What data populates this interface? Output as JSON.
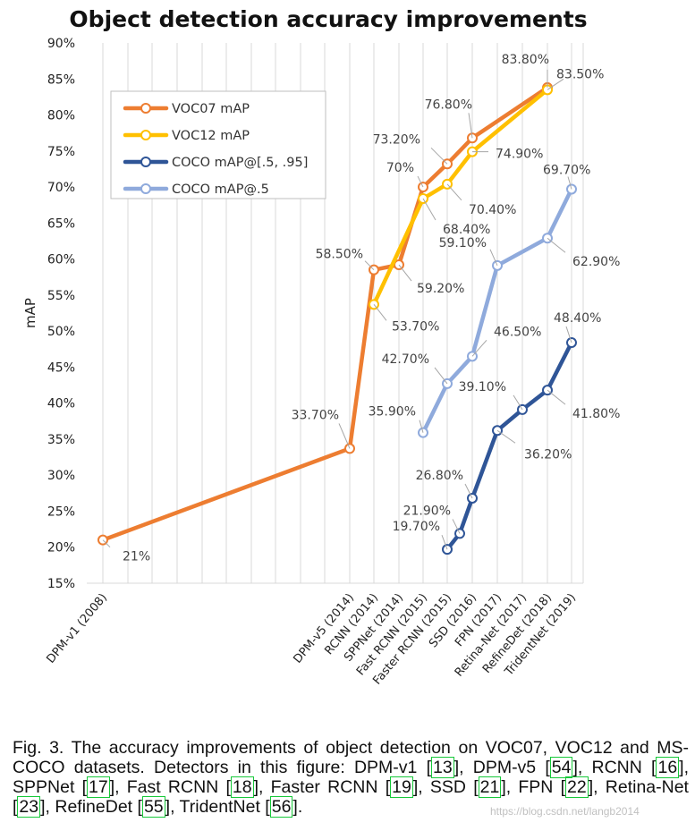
{
  "chart_data": {
    "type": "line",
    "title": "Object detection accuracy improvements",
    "ylabel": "mAP",
    "xlabel": "",
    "ylim": [
      15,
      90
    ],
    "yticks": [
      "15%",
      "20%",
      "25%",
      "30%",
      "35%",
      "40%",
      "45%",
      "50%",
      "55%",
      "60%",
      "65%",
      "70%",
      "75%",
      "80%",
      "85%",
      "90%"
    ],
    "grid": "vertical",
    "legend_position": "upper-left",
    "categories": [
      "DPM-v1 (2008)",
      "DPM-v5 (2014)",
      "RCNN (2014)",
      "SPPNet (2014)",
      "Fast RCNN (2015)",
      "Faster RCNN (2015)",
      "SSD (2016)",
      "FPN (2017)",
      "Retina-Net (2017)",
      "RefineDet (2018)",
      "TridentNet (2019)"
    ],
    "series": [
      {
        "name": "VOC07 mAP",
        "color": "#ed7d31",
        "points": [
          {
            "cat": 0,
            "value": 21,
            "label": "21%"
          },
          {
            "cat": 1,
            "value": 33.7,
            "label": "33.70%"
          },
          {
            "cat": 2,
            "value": 58.5,
            "label": "58.50%"
          },
          {
            "cat": 3,
            "value": 59.2,
            "label": "59.20%"
          },
          {
            "cat": 4,
            "value": 70,
            "label": "70%"
          },
          {
            "cat": 5,
            "value": 73.2,
            "label": "73.20%"
          },
          {
            "cat": 6,
            "value": 76.8,
            "label": "76.80%"
          },
          {
            "cat": 9,
            "value": 83.8,
            "label": "83.80%"
          }
        ]
      },
      {
        "name": "VOC12 mAP",
        "color": "#ffc000",
        "points": [
          {
            "cat": 2,
            "value": 53.7,
            "label": "53.70%"
          },
          {
            "cat": 4,
            "value": 68.4,
            "label": "68.40%"
          },
          {
            "cat": 5,
            "value": 70.4,
            "label": "70.40%"
          },
          {
            "cat": 6,
            "value": 74.9,
            "label": "74.90%"
          },
          {
            "cat": 9,
            "value": 83.5,
            "label": "83.50%"
          }
        ]
      },
      {
        "name": "COCO mAP@[.5, .95]",
        "color": "#2f5597",
        "points": [
          {
            "cat": 5,
            "value": 19.7,
            "label": "19.70%"
          },
          {
            "cat": 5.5,
            "value": 21.9,
            "label": "21.90%"
          },
          {
            "cat": 6,
            "value": 26.8,
            "label": "26.80%"
          },
          {
            "cat": 7,
            "value": 36.2,
            "label": "36.20%"
          },
          {
            "cat": 8,
            "value": 39.1,
            "label": "39.10%"
          },
          {
            "cat": 9,
            "value": 41.8,
            "label": "41.80%"
          },
          {
            "cat": 10,
            "value": 48.4,
            "label": "48.40%"
          }
        ]
      },
      {
        "name": "COCO mAP@.5",
        "color": "#8faadc",
        "points": [
          {
            "cat": 4,
            "value": 35.9,
            "label": "35.90%"
          },
          {
            "cat": 5,
            "value": 42.7,
            "label": "42.70%"
          },
          {
            "cat": 6,
            "value": 46.5,
            "label": "46.50%"
          },
          {
            "cat": 7,
            "value": 59.1,
            "label": "59.10%"
          },
          {
            "cat": 9,
            "value": 62.9,
            "label": "62.90%"
          },
          {
            "cat": 10,
            "value": 69.7,
            "label": "69.70%"
          }
        ]
      }
    ]
  },
  "caption": {
    "fig_number": "Fig. 3.",
    "text_1": "The accuracy improvements of object detection on VOC07, VOC12 and MS-COCO datasets. Detectors in this figure: DPM-v1",
    "ref_dpm_v1": "13",
    "text_2": ", DPM-v5",
    "ref_dpm_v5": "54",
    "text_3": ", RCNN",
    "ref_rcnn": "16",
    "text_4": ", SPPNet",
    "ref_sppnet": "17",
    "text_5": ", Fast RCNN",
    "ref_fast_rcnn": "18",
    "text_6": ", Faster RCNN",
    "ref_faster_rcnn": "19",
    "text_7": ", SSD",
    "ref_ssd": "21",
    "text_8": ", FPN",
    "ref_fpn": "22",
    "text_9": ", Retina-Net",
    "ref_retinanet": "23",
    "text_10": ", RefineDet",
    "ref_refinedet": "55",
    "text_11": ", TridentNet",
    "ref_tridentnet": "56",
    "text_12": "."
  },
  "watermark": "https://blog.csdn.net/langb2014"
}
